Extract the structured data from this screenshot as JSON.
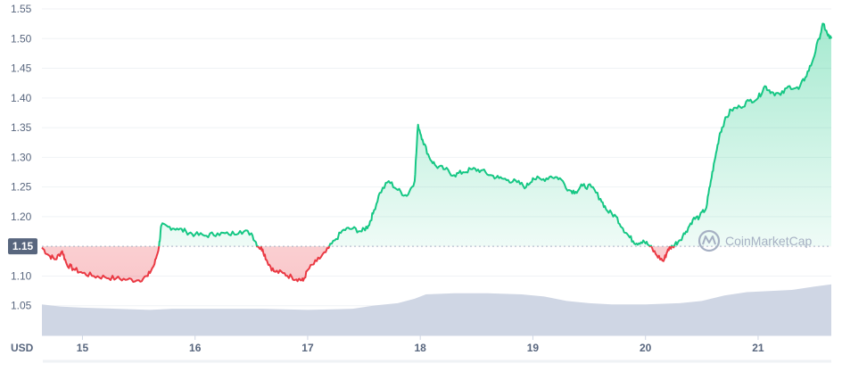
{
  "colors": {
    "up": "#16c784",
    "down": "#ea3943",
    "volume": "#cfd6e4",
    "grid": "#eff2f5",
    "axis_text": "#58667e",
    "badge_bg": "#58667e",
    "watermark": "#a6b0c3"
  },
  "watermark": {
    "text": "CoinMarketCap",
    "icon": "coinmarketcap-logo-icon"
  },
  "chart_data": {
    "type": "line",
    "currency_label": "USD",
    "reference_price": 1.15,
    "reference_label": "1.15",
    "ylim": [
      1.0,
      1.55
    ],
    "y_ticks": [
      {
        "value": 1.05,
        "label": "1.05"
      },
      {
        "value": 1.1,
        "label": "1.10"
      },
      {
        "value": 1.15,
        "label": "1.15"
      },
      {
        "value": 1.2,
        "label": "1.20"
      },
      {
        "value": 1.25,
        "label": "1.25"
      },
      {
        "value": 1.3,
        "label": "1.30"
      },
      {
        "value": 1.35,
        "label": "1.35"
      },
      {
        "value": 1.4,
        "label": "1.40"
      },
      {
        "value": 1.45,
        "label": "1.45"
      },
      {
        "value": 1.5,
        "label": "1.50"
      },
      {
        "value": 1.55,
        "label": "1.55"
      }
    ],
    "xlim": [
      14.64,
      21.65
    ],
    "x_ticks": [
      {
        "value": 15,
        "label": "15"
      },
      {
        "value": 16,
        "label": "16"
      },
      {
        "value": 17,
        "label": "17"
      },
      {
        "value": 18,
        "label": "18"
      },
      {
        "value": 19,
        "label": "19"
      },
      {
        "value": 20,
        "label": "20"
      },
      {
        "value": 21,
        "label": "21"
      }
    ],
    "series": [
      {
        "kind": "price",
        "x": [
          14.64,
          14.7,
          14.76,
          14.82,
          14.86,
          14.92,
          15.0,
          15.1,
          15.2,
          15.3,
          15.4,
          15.5,
          15.58,
          15.64,
          15.68,
          15.7,
          15.76,
          15.84,
          15.92,
          16.0,
          16.1,
          16.2,
          16.3,
          16.4,
          16.5,
          16.56,
          16.6,
          16.64,
          16.7,
          16.78,
          16.86,
          16.92,
          16.96,
          17.0,
          17.08,
          17.16,
          17.24,
          17.32,
          17.4,
          17.48,
          17.54,
          17.58,
          17.64,
          17.72,
          17.8,
          17.88,
          17.95,
          17.98,
          18.02,
          18.08,
          18.14,
          18.22,
          18.3,
          18.38,
          18.46,
          18.54,
          18.62,
          18.7,
          18.78,
          18.86,
          18.94,
          19.0,
          19.08,
          19.16,
          19.24,
          19.32,
          19.38,
          19.44,
          19.52,
          19.6,
          19.66,
          19.74,
          19.8,
          19.86,
          19.92,
          19.98,
          20.04,
          20.1,
          20.16,
          20.2,
          20.24,
          20.3,
          20.36,
          20.42,
          20.48,
          20.54,
          20.58,
          20.62,
          20.66,
          20.7,
          20.76,
          20.84,
          20.92,
          21.0,
          21.06,
          21.12,
          21.2,
          21.28,
          21.36,
          21.42,
          21.48,
          21.54,
          21.58,
          21.62,
          21.65
        ],
        "y": [
          1.148,
          1.135,
          1.128,
          1.142,
          1.12,
          1.112,
          1.105,
          1.1,
          1.098,
          1.096,
          1.094,
          1.093,
          1.1,
          1.12,
          1.15,
          1.185,
          1.183,
          1.18,
          1.175,
          1.17,
          1.168,
          1.172,
          1.17,
          1.176,
          1.172,
          1.15,
          1.145,
          1.125,
          1.108,
          1.105,
          1.098,
          1.095,
          1.092,
          1.11,
          1.125,
          1.14,
          1.16,
          1.178,
          1.18,
          1.175,
          1.185,
          1.205,
          1.24,
          1.26,
          1.245,
          1.235,
          1.26,
          1.355,
          1.33,
          1.3,
          1.285,
          1.28,
          1.27,
          1.275,
          1.28,
          1.278,
          1.27,
          1.265,
          1.262,
          1.258,
          1.25,
          1.265,
          1.262,
          1.268,
          1.265,
          1.245,
          1.242,
          1.252,
          1.25,
          1.23,
          1.21,
          1.2,
          1.18,
          1.165,
          1.155,
          1.16,
          1.15,
          1.135,
          1.125,
          1.145,
          1.15,
          1.16,
          1.175,
          1.195,
          1.2,
          1.215,
          1.26,
          1.3,
          1.34,
          1.36,
          1.38,
          1.385,
          1.395,
          1.4,
          1.42,
          1.41,
          1.405,
          1.42,
          1.415,
          1.435,
          1.46,
          1.5,
          1.525,
          1.505,
          1.5
        ]
      },
      {
        "kind": "volume",
        "x": [
          14.64,
          14.8,
          15.0,
          15.3,
          15.6,
          15.8,
          16.2,
          16.6,
          17.0,
          17.4,
          17.6,
          17.8,
          17.95,
          18.05,
          18.3,
          18.6,
          18.9,
          19.1,
          19.3,
          19.5,
          19.7,
          20.0,
          20.3,
          20.5,
          20.7,
          20.9,
          21.1,
          21.3,
          21.5,
          21.65
        ],
        "v": [
          0.28,
          0.26,
          0.25,
          0.24,
          0.23,
          0.24,
          0.24,
          0.24,
          0.23,
          0.24,
          0.27,
          0.29,
          0.33,
          0.37,
          0.38,
          0.38,
          0.37,
          0.35,
          0.31,
          0.29,
          0.28,
          0.28,
          0.29,
          0.31,
          0.36,
          0.39,
          0.4,
          0.41,
          0.44,
          0.46
        ]
      }
    ]
  }
}
